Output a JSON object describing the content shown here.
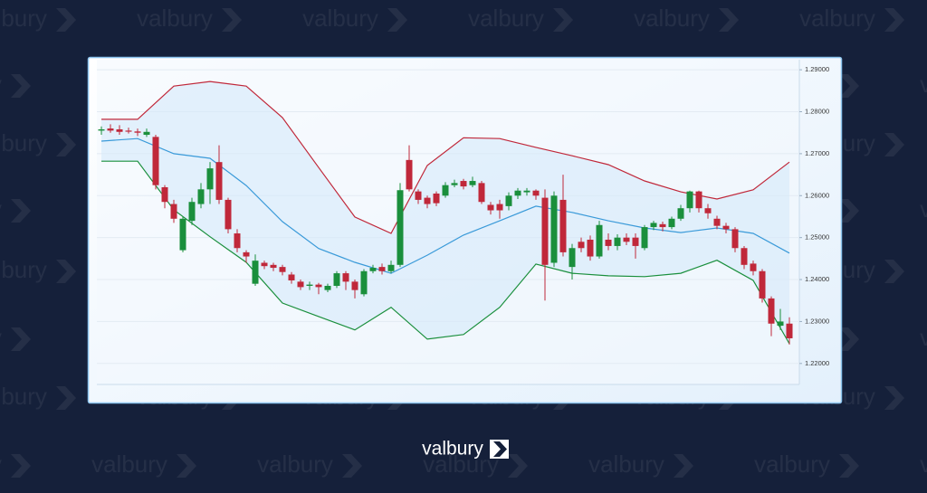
{
  "watermark": "valbury",
  "logo": "valbury",
  "chart_data": {
    "type": "candlestick",
    "up_color": "#1a8f3c",
    "down_color": "#c0283a",
    "xlim": [
      -0.5,
      77.1
    ],
    "ylim": [
      1.215,
      1.2924
    ],
    "yticks": [
      {
        "value": 1.22,
        "label": "1.22000"
      },
      {
        "value": 1.23,
        "label": "1.23000"
      },
      {
        "value": 1.24,
        "label": "1.24000"
      },
      {
        "value": 1.25,
        "label": "1.25000"
      },
      {
        "value": 1.26,
        "label": "1.26000"
      },
      {
        "value": 1.27,
        "label": "1.27000"
      },
      {
        "value": 1.28,
        "label": "1.28000"
      },
      {
        "value": 1.29,
        "label": "1.29000"
      }
    ],
    "grid": true,
    "open": [
      1.2755,
      1.276,
      1.2758,
      1.2755,
      1.2753,
      1.2745,
      1.274,
      1.262,
      1.258,
      1.247,
      1.254,
      1.258,
      1.2615,
      1.268,
      1.259,
      1.251,
      1.2465,
      1.239,
      1.244,
      1.2435,
      1.243,
      1.2412,
      1.2395,
      1.2385,
      1.2388,
      1.2375,
      1.2385,
      1.2415,
      1.2395,
      1.2365,
      1.242,
      1.243,
      1.242,
      1.2435,
      1.2685,
      1.261,
      1.2595,
      1.2605,
      1.26,
      1.2625,
      1.2635,
      1.2625,
      1.263,
      1.2578,
      1.258,
      1.2575,
      1.26,
      1.2608,
      1.2612,
      1.2595,
      1.244,
      1.259,
      1.243,
      1.249,
      1.2495,
      1.2455,
      1.2495,
      1.248,
      1.25,
      1.25,
      1.2475,
      1.2525,
      1.2532,
      1.2525,
      1.2545,
      1.257,
      1.261,
      1.257,
      1.2545,
      1.2528,
      1.252,
      1.2475,
      1.2438,
      1.242,
      1.2355,
      1.229,
      1.2295
    ],
    "high": [
      1.2765,
      1.277,
      1.2768,
      1.2762,
      1.276,
      1.276,
      1.2745,
      1.2625,
      1.259,
      1.255,
      1.2595,
      1.263,
      1.268,
      1.272,
      1.2595,
      1.252,
      1.247,
      1.246,
      1.2445,
      1.244,
      1.2435,
      1.2418,
      1.24,
      1.2395,
      1.2392,
      1.239,
      1.242,
      1.242,
      1.24,
      1.2425,
      1.2435,
      1.2438,
      1.2445,
      1.263,
      1.272,
      1.2615,
      1.26,
      1.261,
      1.2632,
      1.2638,
      1.264,
      1.2645,
      1.2635,
      1.2585,
      1.259,
      1.2608,
      1.2618,
      1.2618,
      1.2615,
      1.2615,
      1.261,
      1.265,
      1.2485,
      1.25,
      1.2505,
      1.254,
      1.251,
      1.2508,
      1.251,
      1.251,
      1.253,
      1.254,
      1.2538,
      1.255,
      1.2578,
      1.2612,
      1.2612,
      1.258,
      1.2552,
      1.2535,
      1.2525,
      1.248,
      1.2445,
      1.2425,
      1.236,
      1.233,
      1.231
    ],
    "low": [
      1.2745,
      1.275,
      1.2745,
      1.2748,
      1.2742,
      1.274,
      1.2615,
      1.257,
      1.2535,
      1.2465,
      1.253,
      1.257,
      1.258,
      1.258,
      1.251,
      1.2465,
      1.244,
      1.2385,
      1.2425,
      1.242,
      1.241,
      1.239,
      1.2375,
      1.2375,
      1.2365,
      1.237,
      1.238,
      1.2375,
      1.2355,
      1.236,
      1.2415,
      1.2412,
      1.2415,
      1.243,
      1.261,
      1.258,
      1.257,
      1.2575,
      1.2595,
      1.262,
      1.2615,
      1.262,
      1.258,
      1.2555,
      1.2545,
      1.2565,
      1.2592,
      1.26,
      1.259,
      1.235,
      1.243,
      1.2455,
      1.24,
      1.2465,
      1.2445,
      1.245,
      1.247,
      1.247,
      1.2482,
      1.245,
      1.247,
      1.2518,
      1.2515,
      1.252,
      1.254,
      1.256,
      1.256,
      1.2545,
      1.252,
      1.251,
      1.2465,
      1.2425,
      1.241,
      1.2345,
      1.2265,
      1.228,
      1.2245
    ],
    "close": [
      1.2758,
      1.2755,
      1.2752,
      1.2753,
      1.275,
      1.2752,
      1.2625,
      1.2585,
      1.2545,
      1.2545,
      1.2585,
      1.2615,
      1.2665,
      1.259,
      1.252,
      1.2475,
      1.2455,
      1.2445,
      1.2432,
      1.2428,
      1.2418,
      1.2398,
      1.2382,
      1.2388,
      1.2382,
      1.2385,
      1.2415,
      1.2395,
      1.2375,
      1.242,
      1.2428,
      1.242,
      1.2435,
      1.2613,
      1.2615,
      1.259,
      1.258,
      1.2582,
      1.2625,
      1.263,
      1.2622,
      1.2635,
      1.2585,
      1.2565,
      1.2565,
      1.26,
      1.2612,
      1.2612,
      1.26,
      1.2435,
      1.26,
      1.2465,
      1.2475,
      1.2475,
      1.2455,
      1.253,
      1.248,
      1.25,
      1.249,
      1.248,
      1.2525,
      1.2535,
      1.2525,
      1.2545,
      1.257,
      1.261,
      1.257,
      1.2558,
      1.2528,
      1.252,
      1.2475,
      1.2435,
      1.242,
      1.2355,
      1.2295,
      1.23,
      1.226
    ],
    "bands": {
      "x": [
        0,
        4,
        8,
        12,
        16,
        20,
        24,
        28,
        32,
        36,
        40,
        44,
        48,
        52,
        56,
        60,
        64,
        68,
        72,
        76
      ],
      "band_fill": "#d6e9fa",
      "series": [
        {
          "key": "upper",
          "color": "#c0283a",
          "values": [
            1.2782,
            1.2782,
            1.2861,
            1.2872,
            1.2861,
            1.2786,
            1.2667,
            1.2549,
            1.251,
            1.2672,
            1.2738,
            1.2736,
            1.2715,
            1.2695,
            1.2674,
            1.2635,
            1.2609,
            1.2592,
            1.2614,
            1.268
          ]
        },
        {
          "key": "middle",
          "color": "#3a9ad9",
          "values": [
            1.273,
            1.2736,
            1.27,
            1.2689,
            1.2624,
            1.2538,
            1.2474,
            1.2441,
            1.2415,
            1.2458,
            1.2506,
            1.254,
            1.2575,
            1.256,
            1.254,
            1.2523,
            1.2512,
            1.2523,
            1.251,
            1.2463
          ]
        },
        {
          "key": "lower",
          "color": "#1a8f3c",
          "values": [
            1.2682,
            1.2682,
            1.2566,
            1.2502,
            1.2441,
            1.2344,
            1.2312,
            1.228,
            1.2334,
            1.2258,
            1.2269,
            1.2334,
            1.2437,
            1.2415,
            1.2409,
            1.2407,
            1.2415,
            1.2446,
            1.2398,
            1.2247
          ]
        }
      ]
    }
  }
}
